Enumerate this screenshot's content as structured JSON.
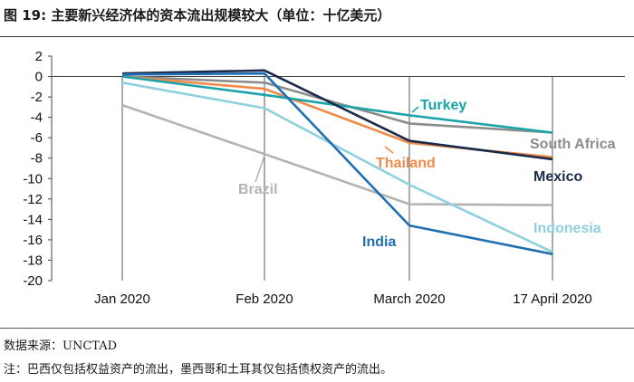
{
  "figure": {
    "title": "图 19: 主要新兴经济体的资本流出规模较大（单位：十亿美元）",
    "source": "数据来源：UNCTAD",
    "note": "注：巴西仅包括权益资产的流出，墨西哥和土耳其仅包括债权资产的流出。"
  },
  "chart_data": {
    "type": "line",
    "title": "主要新兴经济体的资本流出规模较大（单位：十亿美元）",
    "xlabel": "",
    "ylabel": "",
    "categories": [
      "Jan 2020",
      "Feb 2020",
      "March 2020",
      "17 April 2020"
    ],
    "ylim": [
      -20,
      2
    ],
    "yticks": [
      2,
      0,
      -2,
      -4,
      -6,
      -8,
      -10,
      -12,
      -14,
      -16,
      -18,
      -20
    ],
    "series": [
      {
        "name": "Turkey",
        "color": "#1aa3a8",
        "values": [
          0,
          -1.8,
          -3.8,
          -5.5
        ]
      },
      {
        "name": "South Africa",
        "color": "#8c8c8c",
        "values": [
          0,
          -0.6,
          -4.6,
          -5.5
        ]
      },
      {
        "name": "Mexico",
        "color": "#1a2a4a",
        "values": [
          0.3,
          0.6,
          -6.3,
          -8.1
        ]
      },
      {
        "name": "Thailand",
        "color": "#f08a4b",
        "values": [
          0,
          -1.2,
          -6.5,
          -7.9
        ]
      },
      {
        "name": "Brazil",
        "color": "#b3b3b3",
        "values": [
          -2.8,
          -7.6,
          -12.5,
          -12.6
        ]
      },
      {
        "name": "Indonesia",
        "color": "#8fd0e0",
        "values": [
          -0.6,
          -3.1,
          -10.6,
          -17.2
        ]
      },
      {
        "name": "India",
        "color": "#1f6fb2",
        "values": [
          0.2,
          0.3,
          -14.6,
          -17.4
        ]
      }
    ]
  }
}
